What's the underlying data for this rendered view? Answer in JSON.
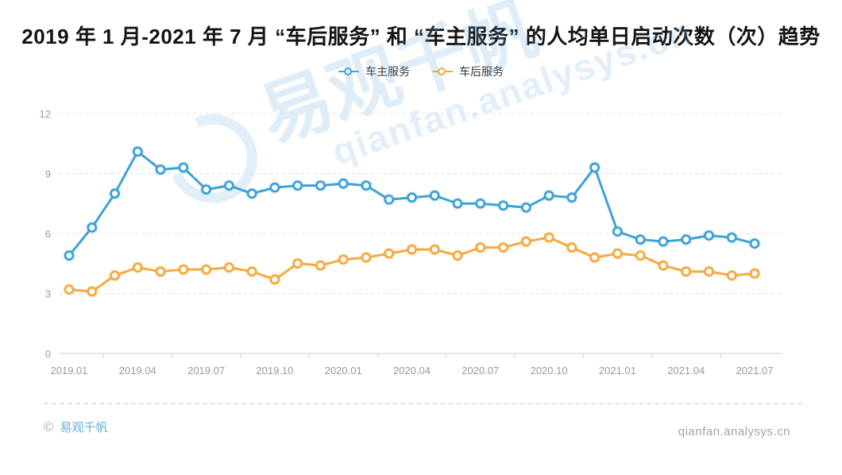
{
  "title": "2019 年 1 月-2021 年 7 月 “车后服务” 和 “车主服务” 的人均单日启动次数（次）趋势",
  "legend": {
    "items": [
      {
        "label": "车主服务",
        "color": "#3DA2D6"
      },
      {
        "label": "车后服务",
        "color": "#F5A93F"
      }
    ]
  },
  "watermark": {
    "brand": "易观千帆",
    "site": "qianfan.analysys.cn"
  },
  "footer": {
    "copyright_symbol": "©",
    "brand": "易观千帆",
    "site": "qianfan.analysys.cn"
  },
  "chart_data": {
    "type": "line",
    "title": "2019 年 1 月-2021 年 7 月 “车后服务” 和 “车主服务” 的人均单日启动次数（次）趋势",
    "x": [
      "2019.01",
      "2019.02",
      "2019.03",
      "2019.04",
      "2019.05",
      "2019.06",
      "2019.07",
      "2019.08",
      "2019.09",
      "2019.10",
      "2019.11",
      "2019.12",
      "2020.01",
      "2020.02",
      "2020.03",
      "2020.04",
      "2020.05",
      "2020.06",
      "2020.07",
      "2020.08",
      "2020.09",
      "2020.10",
      "2020.11",
      "2020.12",
      "2021.01",
      "2021.02",
      "2021.03",
      "2021.04",
      "2021.05",
      "2021.06",
      "2021.07"
    ],
    "x_tick_labels": [
      "2019.01",
      "2019.04",
      "2019.07",
      "2019.10",
      "2020.01",
      "2020.04",
      "2020.07",
      "2020.10",
      "2021.01",
      "2021.04",
      "2021.07"
    ],
    "x_label_every": 3,
    "ylim": [
      0,
      12
    ],
    "yticks": [
      0,
      3,
      6,
      9,
      12
    ],
    "grid": "horizontal-dashed",
    "legend_position": "top-center",
    "marker": "hollow-circle",
    "series": [
      {
        "name": "车主服务",
        "color": "#3DA2D6",
        "values": [
          4.9,
          6.3,
          8.0,
          10.1,
          9.2,
          9.3,
          8.2,
          8.4,
          8.0,
          8.3,
          8.4,
          8.4,
          8.5,
          8.4,
          7.7,
          7.8,
          7.9,
          7.5,
          7.5,
          7.4,
          7.3,
          7.9,
          7.8,
          9.3,
          6.1,
          5.7,
          5.6,
          5.7,
          5.9,
          5.8,
          5.5
        ]
      },
      {
        "name": "车后服务",
        "color": "#F5A93F",
        "values": [
          3.2,
          3.1,
          3.9,
          4.3,
          4.1,
          4.2,
          4.2,
          4.3,
          4.1,
          3.7,
          4.5,
          4.4,
          4.7,
          4.8,
          5.0,
          5.2,
          5.2,
          4.9,
          5.3,
          5.3,
          5.6,
          5.8,
          5.3,
          4.8,
          5.0,
          4.9,
          4.4,
          4.1,
          4.1,
          3.9,
          4.0
        ]
      }
    ]
  }
}
